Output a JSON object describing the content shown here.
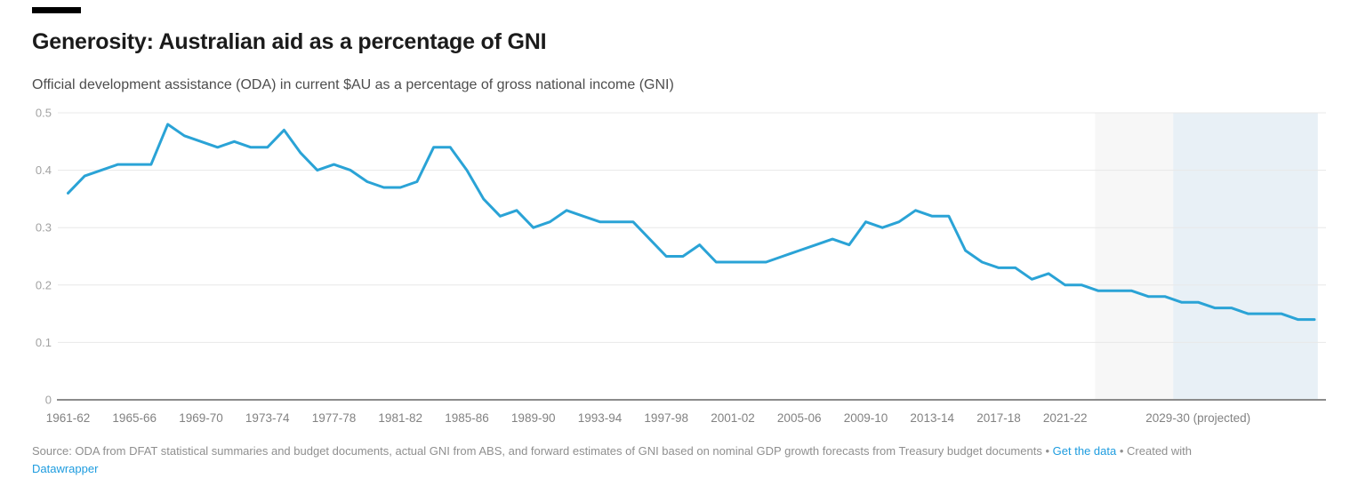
{
  "header": {
    "title": "Generosity: Australian aid as a percentage of GNI",
    "subtitle": "Official development assistance (ODA) in current $AU as a percentage of gross national income (GNI)"
  },
  "footer": {
    "source_text": "Source: ODA from DFAT statistical summaries and budget documents, actual GNI from ABS, and forward estimates of GNI based on nominal GDP growth forecasts from Treasury budget documents",
    "separator": "•",
    "get_data_label": "Get the data",
    "created_with_label": "Created with",
    "datawrapper_label": "Datawrapper"
  },
  "chart_data": {
    "type": "line",
    "title": "Generosity: Australian aid as a percentage of GNI",
    "subtitle": "Official development assistance (ODA) in current $AU as a percentage of gross national income (GNI)",
    "xlabel": "",
    "ylabel": "",
    "ylim": [
      0,
      0.5
    ],
    "grid": true,
    "legend": false,
    "line_color": "#2aa3d6",
    "x": [
      "1961-62",
      "1962-63",
      "1963-64",
      "1964-65",
      "1965-66",
      "1966-67",
      "1967-68",
      "1968-69",
      "1969-70",
      "1970-71",
      "1971-72",
      "1972-73",
      "1973-74",
      "1974-75",
      "1975-76",
      "1976-77",
      "1977-78",
      "1978-79",
      "1979-80",
      "1980-81",
      "1981-82",
      "1982-83",
      "1983-84",
      "1984-85",
      "1985-86",
      "1986-87",
      "1987-88",
      "1988-89",
      "1989-90",
      "1990-91",
      "1991-92",
      "1992-93",
      "1993-94",
      "1994-95",
      "1995-96",
      "1996-97",
      "1997-98",
      "1998-99",
      "1999-00",
      "2000-01",
      "2001-02",
      "2002-03",
      "2003-04",
      "2004-05",
      "2005-06",
      "2006-07",
      "2007-08",
      "2008-09",
      "2009-10",
      "2010-11",
      "2011-12",
      "2012-13",
      "2013-14",
      "2014-15",
      "2015-16",
      "2016-17",
      "2017-18",
      "2018-19",
      "2019-20",
      "2020-21",
      "2021-22",
      "2022-23",
      "2023-24",
      "2024-25",
      "2025-26",
      "2026-27",
      "2027-28",
      "2028-29",
      "2029-30",
      "2030-31",
      "2031-32",
      "2032-33",
      "2033-34",
      "2034-35",
      "2035-36",
      "2036-37"
    ],
    "values": [
      0.36,
      0.39,
      0.4,
      0.41,
      0.41,
      0.41,
      0.48,
      0.46,
      0.45,
      0.44,
      0.45,
      0.44,
      0.44,
      0.47,
      0.43,
      0.4,
      0.41,
      0.4,
      0.38,
      0.37,
      0.37,
      0.38,
      0.44,
      0.44,
      0.4,
      0.35,
      0.32,
      0.33,
      0.3,
      0.31,
      0.33,
      0.32,
      0.31,
      0.31,
      0.31,
      0.28,
      0.25,
      0.25,
      0.27,
      0.24,
      0.24,
      0.24,
      0.24,
      0.25,
      0.26,
      0.27,
      0.28,
      0.27,
      0.31,
      0.3,
      0.31,
      0.33,
      0.32,
      0.32,
      0.26,
      0.24,
      0.23,
      0.23,
      0.21,
      0.22,
      0.2,
      0.2,
      0.19,
      0.19,
      0.19,
      0.18,
      0.18,
      0.17,
      0.17,
      0.16,
      0.16,
      0.15,
      0.15,
      0.15,
      0.14,
      0.14
    ],
    "y_ticks": [
      0,
      0.1,
      0.2,
      0.3,
      0.4,
      0.5
    ],
    "x_tick_indices": [
      0,
      4,
      8,
      12,
      16,
      20,
      24,
      28,
      32,
      36,
      40,
      44,
      48,
      52,
      56,
      60
    ],
    "x_special_tick": {
      "index": 68,
      "label": "2029-30 (projected)"
    },
    "regions": [
      {
        "name": "estimates-band",
        "start_index": 61.8,
        "end_index": 66.5,
        "color": "#f7f7f7"
      },
      {
        "name": "projected-band",
        "start_index": 66.5,
        "end_index": 75.2,
        "color": "#e8f0f6"
      }
    ]
  },
  "colors": {
    "line": "#2aa3d6",
    "link": "#1e9cdf",
    "baseline": "#8b8b8b",
    "gridline": "#e8e8e8"
  }
}
